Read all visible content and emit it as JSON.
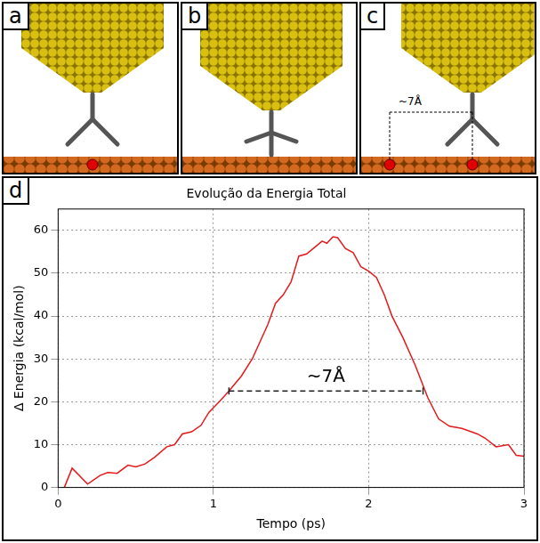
{
  "panels": [
    {
      "label": "a"
    },
    {
      "label": "b"
    },
    {
      "label": "c",
      "annotation": "~7Å"
    }
  ],
  "chart_panel": "d",
  "chart_data": {
    "type": "line",
    "title": "Evolução da Energia Total",
    "x_label": "Tempo (ps)",
    "y_label": "Δ Energia (kcal/mol)",
    "x": [
      0.04,
      0.09,
      0.19,
      0.27,
      0.32,
      0.38,
      0.45,
      0.5,
      0.56,
      0.62,
      0.7,
      0.75,
      0.8,
      0.86,
      0.92,
      0.97,
      1.05,
      1.1,
      1.18,
      1.25,
      1.3,
      1.35,
      1.4,
      1.45,
      1.5,
      1.55,
      1.6,
      1.65,
      1.7,
      1.73,
      1.77,
      1.8,
      1.85,
      1.9,
      1.95,
      2.0,
      2.05,
      2.1,
      2.15,
      2.22,
      2.3,
      2.38,
      2.45,
      2.52,
      2.6,
      2.7,
      2.75,
      2.82,
      2.9,
      2.95,
      3.0
    ],
    "values": [
      0,
      4.5,
      0.8,
      2.8,
      3.5,
      3.3,
      5.2,
      4.8,
      5.5,
      7,
      9.5,
      10,
      12.5,
      13,
      14.5,
      17.5,
      20.5,
      22.5,
      26,
      30,
      34,
      38,
      43,
      45,
      48,
      54,
      54.5,
      56,
      57.5,
      57,
      58.5,
      58.3,
      55.8,
      54.8,
      51.5,
      50.5,
      49,
      45,
      40,
      35,
      28.5,
      21,
      16,
      14.3,
      13.8,
      12.5,
      11.5,
      9.5,
      10,
      7.5,
      7.3
    ],
    "color": "#e41a1c",
    "xlim": [
      0,
      3
    ],
    "xticks": [
      0,
      1,
      2,
      3
    ],
    "ylim": [
      0,
      65
    ],
    "yticks": [
      0,
      10,
      20,
      30,
      40,
      50,
      60
    ],
    "grid": true,
    "annotations": [
      {
        "text": "~7Å",
        "x": [
          1.1,
          2.35
        ],
        "y": 22.5
      }
    ]
  }
}
